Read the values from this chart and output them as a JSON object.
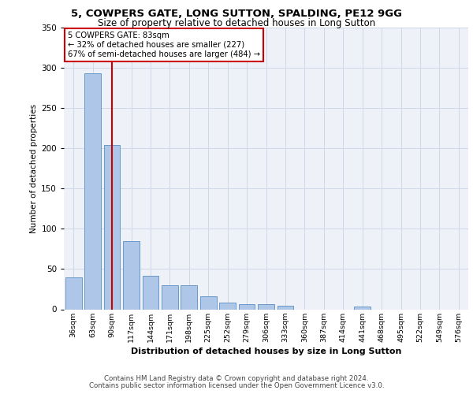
{
  "title1": "5, COWPERS GATE, LONG SUTTON, SPALDING, PE12 9GG",
  "title2": "Size of property relative to detached houses in Long Sutton",
  "xlabel": "Distribution of detached houses by size in Long Sutton",
  "ylabel": "Number of detached properties",
  "categories": [
    "36sqm",
    "63sqm",
    "90sqm",
    "117sqm",
    "144sqm",
    "171sqm",
    "198sqm",
    "225sqm",
    "252sqm",
    "279sqm",
    "306sqm",
    "333sqm",
    "360sqm",
    "387sqm",
    "414sqm",
    "441sqm",
    "468sqm",
    "495sqm",
    "522sqm",
    "549sqm",
    "576sqm"
  ],
  "values": [
    40,
    293,
    204,
    85,
    42,
    30,
    30,
    16,
    8,
    6,
    6,
    4,
    0,
    0,
    0,
    3,
    0,
    0,
    0,
    0,
    0
  ],
  "bar_color": "#aec6e8",
  "bar_edge_color": "#5a8fc2",
  "red_line_x": 2,
  "annotation_title": "5 COWPERS GATE: 83sqm",
  "annotation_line1": "← 32% of detached houses are smaller (227)",
  "annotation_line2": "67% of semi-detached houses are larger (484) →",
  "annotation_box_color": "#ffffff",
  "annotation_border_color": "#cc0000",
  "grid_color": "#d0d8e8",
  "plot_background": "#eef2f8",
  "ylim": [
    0,
    350
  ],
  "yticks": [
    0,
    50,
    100,
    150,
    200,
    250,
    300,
    350
  ],
  "footer1": "Contains HM Land Registry data © Crown copyright and database right 2024.",
  "footer2": "Contains public sector information licensed under the Open Government Licence v3.0."
}
